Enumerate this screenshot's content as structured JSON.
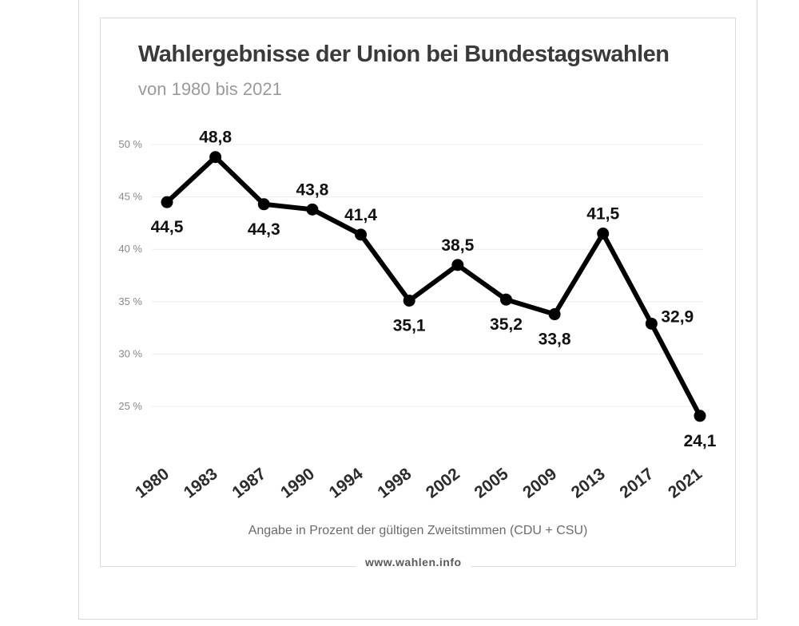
{
  "chart_data": {
    "type": "line",
    "title": "Wahlergebnisse der Union bei Bundestagswahlen",
    "subtitle": "von 1980 bis 2021",
    "xlabel": "Angabe in Prozent der gültigen Zweitstimmen (CDU + CSU)",
    "ylabel": "",
    "ylim": [
      20,
      50
    ],
    "y_ticks": [
      25,
      30,
      35,
      40,
      45,
      50
    ],
    "y_tick_labels": [
      "25 %",
      "30 %",
      "35 %",
      "40 %",
      "45 %",
      "50 %"
    ],
    "grid": true,
    "categories": [
      "1980",
      "1983",
      "1987",
      "1990",
      "1994",
      "1998",
      "2002",
      "2005",
      "2009",
      "2013",
      "2017",
      "2021"
    ],
    "values": [
      44.5,
      48.8,
      44.3,
      43.8,
      41.4,
      35.1,
      38.5,
      35.2,
      33.8,
      41.5,
      32.9,
      24.1
    ],
    "value_labels": [
      "44,5",
      "48,8",
      "44,3",
      "43,8",
      "41,4",
      "35,1",
      "38,5",
      "35,2",
      "33,8",
      "41,5",
      "32,9",
      "24,1"
    ],
    "label_positions": [
      "below",
      "above",
      "below",
      "above",
      "above",
      "below",
      "above",
      "below",
      "below",
      "above",
      "right",
      "below"
    ],
    "line_color": "#000000"
  },
  "footer": {
    "watermark": "www.wahlen.info"
  }
}
